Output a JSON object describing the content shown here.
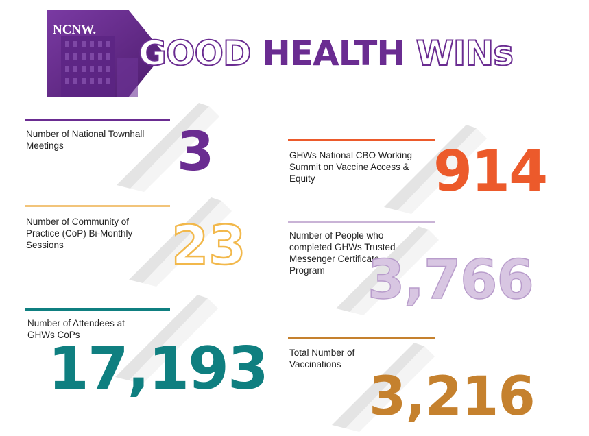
{
  "header": {
    "logo": "NCNW.",
    "title_part1": "GOOD",
    "title_part2": "HEALTH",
    "title_part3": "WINs"
  },
  "colors": {
    "purple": "#6a2c91",
    "yellow": "#f2b84b",
    "teal": "#0f7f80",
    "orange": "#ec5a2b",
    "lavender": "#c9b3d6",
    "amber": "#c5812e"
  },
  "stats": {
    "townhall": {
      "label": "Number of National Townhall Meetings",
      "value": "3"
    },
    "cop_sessions": {
      "label": "Number of Community of Practice (CoP) Bi-Monthly Sessions",
      "value": "23"
    },
    "attendees": {
      "label": "Number of Attendees at GHWs CoPs",
      "value": "17,193"
    },
    "cbo_summit": {
      "label": "GHWs National CBO Working Summit on Vaccine Access & Equity",
      "value": "914"
    },
    "certificate": {
      "label": "Number of People who completed GHWs Trusted Messenger Certificate Program",
      "value": "3,766"
    },
    "vaccinations": {
      "label": "Total Number of Vaccinations",
      "value": "3,216"
    }
  }
}
